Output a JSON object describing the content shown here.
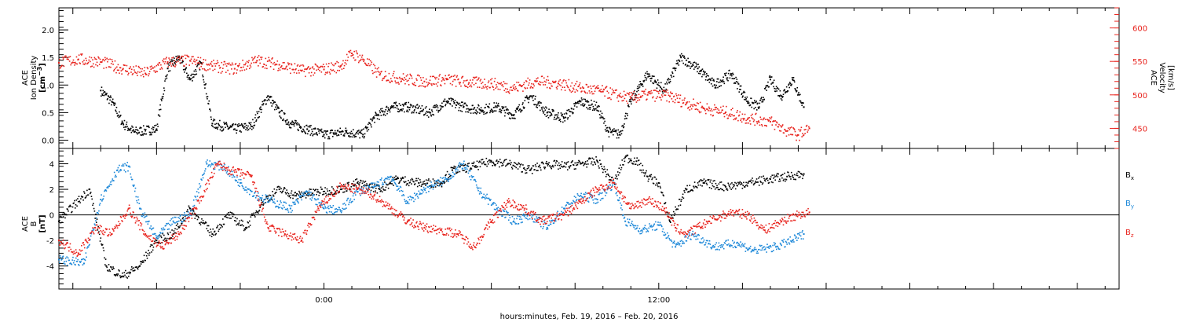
{
  "xlabel": "hours:minutes, Feb. 19, 2016 – Feb. 20, 2016",
  "colors": {
    "black": "#000000",
    "red": "#e8231d",
    "blue": "#1b87d8"
  },
  "chart_data": [
    {
      "type": "scatter",
      "title": "",
      "xlim": [
        -9.5,
        28.5
      ],
      "x_ticks": [
        {
          "x": 0,
          "label": "0:00"
        },
        {
          "x": 12,
          "label": "12:00"
        }
      ],
      "left_axis": {
        "label_lines": [
          "ACE",
          "Ion Density"
        ],
        "unit_base": "[cm",
        "unit_sup": "−3",
        "unit_end": "]",
        "ylim": [
          -0.15,
          2.4
        ],
        "ticks": [
          "0.0",
          "0.5",
          "1.0",
          "1.5",
          "2.0"
        ]
      },
      "right_axis": {
        "label_lines": [
          "ACE",
          "Velocity"
        ],
        "unit": "[km/s]",
        "ylim": [
          420,
          630
        ],
        "ticks": [
          "450",
          "500",
          "550",
          "600"
        ]
      },
      "series": [
        {
          "color": "black",
          "axis": "left",
          "points": [
            [
              -8.0,
              0.9
            ],
            [
              -7.6,
              0.7
            ],
            [
              -7.2,
              0.3
            ],
            [
              -6.8,
              0.15
            ],
            [
              -6.0,
              0.2
            ],
            [
              -5.6,
              1.3
            ],
            [
              -5.2,
              1.5
            ],
            [
              -4.8,
              1.1
            ],
            [
              -4.4,
              1.4
            ],
            [
              -4.0,
              0.3
            ],
            [
              -3.2,
              0.2
            ],
            [
              -2.6,
              0.25
            ],
            [
              -2.0,
              0.8
            ],
            [
              -1.6,
              0.5
            ],
            [
              -1.2,
              0.3
            ],
            [
              -0.6,
              0.2
            ],
            [
              0.0,
              0.1
            ],
            [
              0.8,
              0.15
            ],
            [
              1.4,
              0.1
            ],
            [
              1.8,
              0.4
            ],
            [
              2.4,
              0.6
            ],
            [
              3.0,
              0.6
            ],
            [
              3.8,
              0.5
            ],
            [
              4.4,
              0.7
            ],
            [
              5.0,
              0.6
            ],
            [
              5.6,
              0.55
            ],
            [
              6.2,
              0.6
            ],
            [
              6.8,
              0.45
            ],
            [
              7.4,
              0.8
            ],
            [
              8.0,
              0.5
            ],
            [
              8.6,
              0.4
            ],
            [
              9.2,
              0.7
            ],
            [
              9.8,
              0.6
            ],
            [
              10.2,
              0.15
            ],
            [
              10.6,
              0.1
            ],
            [
              11.0,
              0.7
            ],
            [
              11.6,
              1.2
            ],
            [
              12.2,
              0.9
            ],
            [
              12.8,
              1.5
            ],
            [
              13.4,
              1.3
            ],
            [
              14.0,
              1.0
            ],
            [
              14.6,
              1.2
            ],
            [
              15.2,
              0.7
            ],
            [
              15.6,
              0.6
            ],
            [
              16.0,
              1.1
            ],
            [
              16.4,
              0.8
            ],
            [
              16.8,
              1.1
            ],
            [
              17.2,
              0.6
            ]
          ]
        },
        {
          "color": "red",
          "axis": "right",
          "points": [
            [
              -9.5,
              548
            ],
            [
              -8.8,
              553
            ],
            [
              -8.0,
              549
            ],
            [
              -7.2,
              539
            ],
            [
              -6.4,
              532
            ],
            [
              -5.6,
              549
            ],
            [
              -4.8,
              551
            ],
            [
              -4.0,
              543
            ],
            [
              -3.2,
              539
            ],
            [
              -2.4,
              551
            ],
            [
              -1.6,
              545
            ],
            [
              -0.8,
              536
            ],
            [
              0.0,
              538
            ],
            [
              0.6,
              543
            ],
            [
              1.0,
              562
            ],
            [
              1.4,
              553
            ],
            [
              2.0,
              530
            ],
            [
              2.8,
              524
            ],
            [
              3.6,
              520
            ],
            [
              4.4,
              523
            ],
            [
              5.2,
              518
            ],
            [
              6.0,
              517
            ],
            [
              6.8,
              510
            ],
            [
              7.6,
              520
            ],
            [
              8.4,
              517
            ],
            [
              9.2,
              510
            ],
            [
              10.0,
              505
            ],
            [
              10.6,
              498
            ],
            [
              11.0,
              495
            ],
            [
              11.6,
              500
            ],
            [
              12.4,
              498
            ],
            [
              13.0,
              488
            ],
            [
              13.6,
              480
            ],
            [
              14.4,
              474
            ],
            [
              15.2,
              465
            ],
            [
              16.0,
              460
            ],
            [
              16.6,
              446
            ],
            [
              17.0,
              440
            ],
            [
              17.4,
              450
            ]
          ]
        }
      ]
    },
    {
      "type": "scatter",
      "title": "",
      "xlim": [
        -9.5,
        28.5
      ],
      "x_ticks": [
        {
          "x": 0,
          "label": "0:00"
        },
        {
          "x": 12,
          "label": "12:00"
        }
      ],
      "left_axis": {
        "label_lines": [
          "ACE",
          "B"
        ],
        "unit": "[nT]",
        "ylim": [
          -5.8,
          5.2
        ],
        "ticks": [
          "-4",
          "-2",
          "0",
          "2",
          "4"
        ]
      },
      "zero_line": true,
      "series": [
        {
          "name": "B",
          "subscript": "x",
          "color": "black",
          "points": [
            [
              -9.5,
              -0.5
            ],
            [
              -8.4,
              2.0
            ],
            [
              -7.8,
              -4.0
            ],
            [
              -7.2,
              -4.8
            ],
            [
              -6.6,
              -4.0
            ],
            [
              -6.0,
              -2.0
            ],
            [
              -5.4,
              -1.5
            ],
            [
              -4.8,
              0.5
            ],
            [
              -4.0,
              -1.5
            ],
            [
              -3.4,
              0.0
            ],
            [
              -2.8,
              -1.0
            ],
            [
              -2.2,
              1.0
            ],
            [
              -1.6,
              2.0
            ],
            [
              -1.0,
              1.5
            ],
            [
              -0.2,
              1.8
            ],
            [
              0.6,
              2.0
            ],
            [
              1.2,
              2.5
            ],
            [
              2.0,
              2.0
            ],
            [
              2.6,
              2.8
            ],
            [
              3.4,
              2.5
            ],
            [
              4.2,
              2.5
            ],
            [
              4.6,
              3.5
            ],
            [
              5.4,
              3.8
            ],
            [
              6.0,
              4.2
            ],
            [
              6.6,
              4.0
            ],
            [
              7.4,
              3.5
            ],
            [
              8.0,
              4.0
            ],
            [
              8.6,
              3.8
            ],
            [
              9.2,
              4.0
            ],
            [
              9.8,
              4.2
            ],
            [
              10.4,
              2.5
            ],
            [
              10.8,
              4.5
            ],
            [
              11.2,
              4.2
            ],
            [
              11.6,
              3.0
            ],
            [
              12.0,
              2.5
            ],
            [
              12.4,
              -0.5
            ],
            [
              13.0,
              2.0
            ],
            [
              13.6,
              2.5
            ],
            [
              14.4,
              2.2
            ],
            [
              15.2,
              2.5
            ],
            [
              16.0,
              2.8
            ],
            [
              16.6,
              3.0
            ],
            [
              17.2,
              3.2
            ]
          ]
        },
        {
          "name": "B",
          "subscript": "y",
          "color": "blue",
          "points": [
            [
              -9.5,
              -3.5
            ],
            [
              -8.6,
              -3.8
            ],
            [
              -8.0,
              1.2
            ],
            [
              -7.4,
              3.5
            ],
            [
              -7.0,
              3.8
            ],
            [
              -6.6,
              0.5
            ],
            [
              -6.0,
              -1.8
            ],
            [
              -5.4,
              -0.5
            ],
            [
              -4.8,
              0.0
            ],
            [
              -4.2,
              4.0
            ],
            [
              -3.6,
              3.8
            ],
            [
              -3.0,
              2.5
            ],
            [
              -2.4,
              1.5
            ],
            [
              -1.8,
              1.0
            ],
            [
              -1.2,
              0.5
            ],
            [
              -0.6,
              1.8
            ],
            [
              0.0,
              0.5
            ],
            [
              0.6,
              0.3
            ],
            [
              1.2,
              1.8
            ],
            [
              1.8,
              2.2
            ],
            [
              2.4,
              3.0
            ],
            [
              3.0,
              1.0
            ],
            [
              3.6,
              2.0
            ],
            [
              4.4,
              2.8
            ],
            [
              5.0,
              4.0
            ],
            [
              5.6,
              1.8
            ],
            [
              6.2,
              0.5
            ],
            [
              6.8,
              -0.5
            ],
            [
              7.4,
              0.0
            ],
            [
              8.0,
              -1.0
            ],
            [
              8.6,
              0.5
            ],
            [
              9.2,
              1.5
            ],
            [
              9.8,
              1.2
            ],
            [
              10.4,
              2.5
            ],
            [
              10.8,
              -0.5
            ],
            [
              11.4,
              -1.2
            ],
            [
              12.0,
              -0.8
            ],
            [
              12.6,
              -2.5
            ],
            [
              13.2,
              -1.5
            ],
            [
              14.0,
              -2.5
            ],
            [
              14.8,
              -2.2
            ],
            [
              15.4,
              -2.8
            ],
            [
              16.2,
              -2.5
            ],
            [
              16.8,
              -2.0
            ],
            [
              17.2,
              -1.5
            ]
          ]
        },
        {
          "name": "B",
          "subscript": "z",
          "color": "red",
          "points": [
            [
              -9.5,
              -2.0
            ],
            [
              -8.8,
              -3.0
            ],
            [
              -8.2,
              -1.0
            ],
            [
              -7.6,
              -1.5
            ],
            [
              -7.0,
              0.5
            ],
            [
              -6.4,
              -1.5
            ],
            [
              -5.8,
              -2.5
            ],
            [
              -5.2,
              -1.5
            ],
            [
              -4.6,
              0.5
            ],
            [
              -3.8,
              4.0
            ],
            [
              -3.4,
              3.5
            ],
            [
              -2.6,
              3.0
            ],
            [
              -2.0,
              -1.0
            ],
            [
              -1.4,
              -1.5
            ],
            [
              -0.8,
              -2.0
            ],
            [
              -0.2,
              0.5
            ],
            [
              0.6,
              2.2
            ],
            [
              1.2,
              2.0
            ],
            [
              1.8,
              1.5
            ],
            [
              2.4,
              0.5
            ],
            [
              3.0,
              -0.5
            ],
            [
              3.6,
              -1.0
            ],
            [
              4.2,
              -1.2
            ],
            [
              4.8,
              -1.5
            ],
            [
              5.4,
              -2.5
            ],
            [
              6.0,
              -0.5
            ],
            [
              6.6,
              1.0
            ],
            [
              7.2,
              0.5
            ],
            [
              7.8,
              -0.5
            ],
            [
              8.6,
              0.0
            ],
            [
              9.2,
              1.0
            ],
            [
              9.8,
              2.0
            ],
            [
              10.4,
              2.5
            ],
            [
              11.0,
              0.5
            ],
            [
              11.6,
              1.2
            ],
            [
              12.2,
              0.5
            ],
            [
              12.6,
              -1.0
            ],
            [
              13.0,
              -1.5
            ],
            [
              13.8,
              -0.5
            ],
            [
              14.6,
              0.2
            ],
            [
              15.2,
              0.0
            ],
            [
              15.8,
              -1.2
            ],
            [
              16.4,
              -0.5
            ],
            [
              17.0,
              0.0
            ],
            [
              17.4,
              0.2
            ]
          ]
        }
      ]
    }
  ]
}
